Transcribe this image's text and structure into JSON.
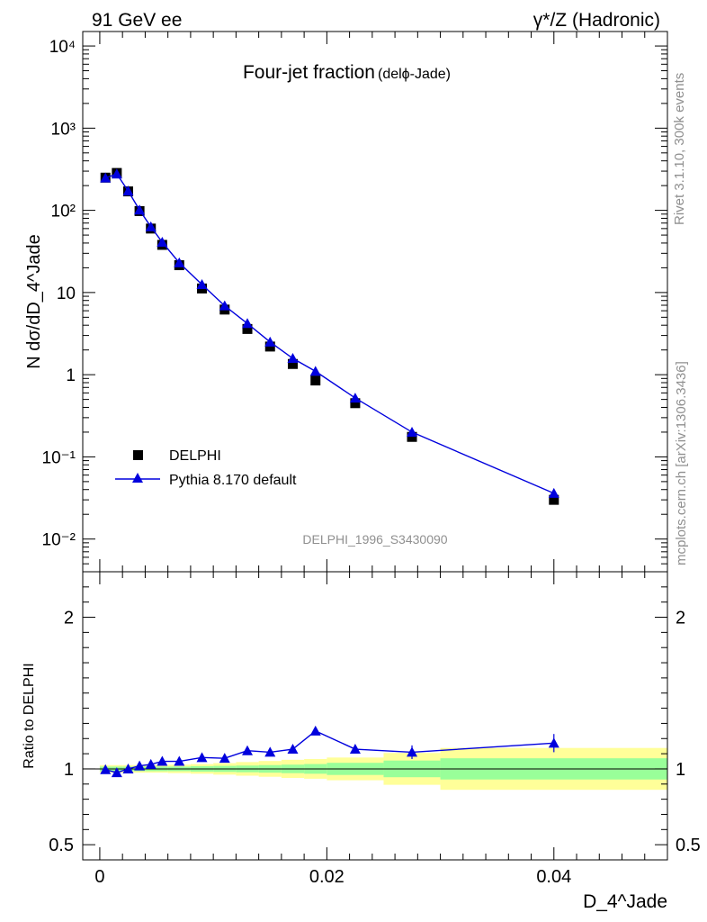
{
  "header": {
    "left": "91 GeV ee",
    "right": "γ*/Z (Hadronic)"
  },
  "side": {
    "rivet": "Rivet 3.1.10,  300k events",
    "mcplots": "mcplots.cern.ch [arXiv:1306.3436]"
  },
  "chart_data": [
    {
      "panel": "main",
      "type": "scatter",
      "title": "Four-jet fraction",
      "subtitle": "(delϕ-Jade)",
      "ylabel": "N dσ/dD_4^Jade",
      "yscale": "log",
      "ylim": [
        0.004,
        15000
      ],
      "xlim": [
        -0.0015,
        0.05
      ],
      "y_tick_labels": [
        "10⁴",
        "10³",
        "10²",
        "10",
        "1",
        "10⁻¹",
        "10⁻²"
      ],
      "watermark": "DELPHI_1996_S3430090",
      "legend_position": "bottom-left",
      "series": [
        {
          "name": "DELPHI",
          "marker": "square",
          "color": "#000000",
          "x": [
            0.0005,
            0.0015,
            0.0025,
            0.0035,
            0.0045,
            0.0055,
            0.007,
            0.009,
            0.011,
            0.013,
            0.015,
            0.017,
            0.019,
            0.0225,
            0.0275,
            0.04
          ],
          "y": [
            250,
            285,
            170,
            98,
            60,
            38,
            21.5,
            11.2,
            6.2,
            3.6,
            2.2,
            1.35,
            0.85,
            0.45,
            0.175,
            0.03
          ]
        },
        {
          "name": "Pythia 8.170 default",
          "marker": "triangle",
          "color": "#0000dd",
          "x": [
            0.0005,
            0.0015,
            0.0025,
            0.0035,
            0.0045,
            0.0055,
            0.007,
            0.009,
            0.011,
            0.013,
            0.015,
            0.017,
            0.019,
            0.0225,
            0.0275,
            0.04
          ],
          "y": [
            248,
            277,
            172,
            101,
            63,
            41,
            23,
            12.5,
            6.9,
            4.2,
            2.5,
            1.58,
            1.1,
            0.52,
            0.2,
            0.036
          ]
        }
      ]
    },
    {
      "panel": "ratio",
      "type": "scatter",
      "ylabel": "Ratio to DELPHI",
      "xlabel": "D_4^Jade",
      "ylim": [
        0.4,
        2.3
      ],
      "xlim": [
        -0.0015,
        0.05
      ],
      "y_tick_labels": [
        "2",
        "1",
        "0.5"
      ],
      "x_tick_labels": [
        "0",
        "0.02",
        "0.04"
      ],
      "x_ticks": [
        0,
        0.02,
        0.04
      ],
      "band_colors": {
        "outer": "#ffff99",
        "inner": "#99ff99"
      },
      "bands": [
        {
          "x0": 0.0,
          "x1": 0.001,
          "inner": [
            0.985,
            1.015
          ],
          "outer": [
            0.975,
            1.025
          ]
        },
        {
          "x0": 0.001,
          "x1": 0.002,
          "inner": [
            0.985,
            1.015
          ],
          "outer": [
            0.975,
            1.025
          ]
        },
        {
          "x0": 0.002,
          "x1": 0.003,
          "inner": [
            0.985,
            1.015
          ],
          "outer": [
            0.975,
            1.025
          ]
        },
        {
          "x0": 0.003,
          "x1": 0.004,
          "inner": [
            0.985,
            1.015
          ],
          "outer": [
            0.975,
            1.025
          ]
        },
        {
          "x0": 0.004,
          "x1": 0.005,
          "inner": [
            0.985,
            1.015
          ],
          "outer": [
            0.975,
            1.025
          ]
        },
        {
          "x0": 0.005,
          "x1": 0.006,
          "inner": [
            0.985,
            1.015
          ],
          "outer": [
            0.975,
            1.025
          ]
        },
        {
          "x0": 0.006,
          "x1": 0.008,
          "inner": [
            0.985,
            1.015
          ],
          "outer": [
            0.972,
            1.028
          ]
        },
        {
          "x0": 0.008,
          "x1": 0.01,
          "inner": [
            0.982,
            1.018
          ],
          "outer": [
            0.968,
            1.032
          ]
        },
        {
          "x0": 0.01,
          "x1": 0.012,
          "inner": [
            0.98,
            1.02
          ],
          "outer": [
            0.962,
            1.038
          ]
        },
        {
          "x0": 0.012,
          "x1": 0.014,
          "inner": [
            0.978,
            1.022
          ],
          "outer": [
            0.955,
            1.045
          ]
        },
        {
          "x0": 0.014,
          "x1": 0.016,
          "inner": [
            0.975,
            1.025
          ],
          "outer": [
            0.948,
            1.052
          ]
        },
        {
          "x0": 0.016,
          "x1": 0.018,
          "inner": [
            0.972,
            1.028
          ],
          "outer": [
            0.94,
            1.06
          ]
        },
        {
          "x0": 0.018,
          "x1": 0.02,
          "inner": [
            0.968,
            1.032
          ],
          "outer": [
            0.935,
            1.065
          ]
        },
        {
          "x0": 0.02,
          "x1": 0.025,
          "inner": [
            0.96,
            1.04
          ],
          "outer": [
            0.925,
            1.075
          ]
        },
        {
          "x0": 0.025,
          "x1": 0.03,
          "inner": [
            0.945,
            1.055
          ],
          "outer": [
            0.895,
            1.105
          ]
        },
        {
          "x0": 0.03,
          "x1": 0.05,
          "inner": [
            0.93,
            1.07
          ],
          "outer": [
            0.862,
            1.138
          ]
        }
      ],
      "series": [
        {
          "name": "Pythia 8.170 default",
          "x": [
            0.0005,
            0.0015,
            0.0025,
            0.0035,
            0.0045,
            0.0055,
            0.007,
            0.009,
            0.011,
            0.013,
            0.015,
            0.017,
            0.019,
            0.0225,
            0.0275,
            0.04
          ],
          "y": [
            0.995,
            0.975,
            1.0,
            1.02,
            1.03,
            1.05,
            1.05,
            1.075,
            1.07,
            1.12,
            1.11,
            1.13,
            1.25,
            1.13,
            1.11,
            1.17
          ],
          "err": [
            0.005,
            0.005,
            0.006,
            0.008,
            0.008,
            0.01,
            0.01,
            0.012,
            0.014,
            0.016,
            0.018,
            0.022,
            0.026,
            0.028,
            0.045,
            0.06
          ]
        }
      ]
    }
  ]
}
